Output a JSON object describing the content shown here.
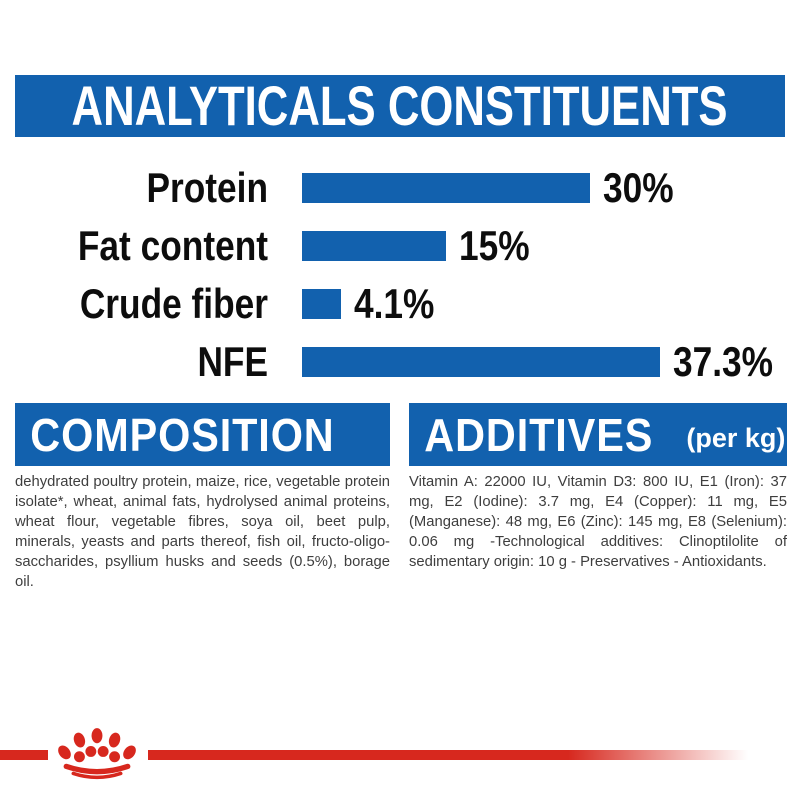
{
  "colors": {
    "blue": "#1261AE",
    "red": "#D7281E",
    "text_gray": "#3e3e3e",
    "label_black": "#0d0d0d",
    "background": "#ffffff"
  },
  "analytical": {
    "title": "ANALYTICALS CONSTITUENTS"
  },
  "chart_data": {
    "type": "bar",
    "orientation": "horizontal",
    "title": "ANALYTICALS CONSTITUENTS",
    "categories": [
      "Protein",
      "Fat content",
      "Crude fiber",
      "NFE"
    ],
    "values": [
      30,
      15,
      4.1,
      37.3
    ],
    "value_labels": [
      "30%",
      "15%",
      "4.1%",
      "37.3%"
    ],
    "unit": "%",
    "xlim": [
      0,
      40
    ],
    "bar_color": "#1261AE",
    "grid": "off",
    "legend": "none"
  },
  "composition": {
    "title": "COMPOSITION",
    "body": "dehydrated poultry protein, maize, rice, vegetable protein isolate*, wheat, animal fats, hydrolysed animal proteins, wheat flour, vegetable fibres, soya oil, beet pulp, minerals, yeasts and parts thereof, fish oil, fructo-oligo-saccharides, psyllium husks and seeds (0.5%), borage oil."
  },
  "additives": {
    "title": "ADDITIVES",
    "suffix": "(per kg)",
    "body": "Vitamin A: 22000 IU, Vitamin D3: 800 IU, E1 (Iron): 37 mg, E2 (Iodine): 3.7 mg, E4 (Copper): 11 mg, E5 (Manganese): 48 mg, E6 (Zinc): 145 mg, E8 (Selenium): 0.06 mg -Technological additives: Clinoptilolite of sedimentary origin: 10 g - Preservatives - Antioxidants."
  },
  "footer": {
    "logo": "royal-canin-crown"
  }
}
